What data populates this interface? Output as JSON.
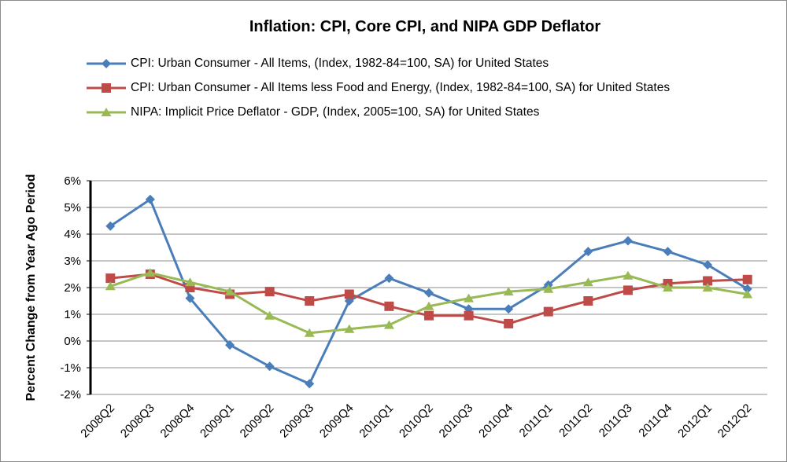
{
  "chart_data": {
    "type": "line",
    "title": "Inflation: CPI, Core CPI, and NIPA GDP Deflator",
    "y_label": "Percent Change from Year Ago Period",
    "categories": [
      "2008Q2",
      "2008Q3",
      "2008Q4",
      "2009Q1",
      "2009Q2",
      "2009Q3",
      "2009Q4",
      "2010Q1",
      "2010Q2",
      "2010Q3",
      "2010Q4",
      "2011Q1",
      "2011Q2",
      "2011Q3",
      "2011Q4",
      "2012Q1",
      "2012Q2"
    ],
    "series": [
      {
        "name": "CPI: Urban Consumer - All Items, (Index, 1982-84=100, SA) for United States",
        "color": "#4a7ebb",
        "marker": "diamond",
        "values": [
          4.3,
          5.3,
          1.6,
          -0.15,
          -0.95,
          -1.6,
          1.5,
          2.35,
          1.8,
          1.2,
          1.2,
          2.1,
          3.35,
          3.75,
          3.35,
          2.85,
          1.95
        ]
      },
      {
        "name": "CPI: Urban Consumer - All Items less Food and Energy, (Index, 1982-84=100, SA) for United States",
        "color": "#be4b48",
        "marker": "square",
        "values": [
          2.35,
          2.5,
          2.0,
          1.75,
          1.85,
          1.5,
          1.75,
          1.3,
          0.95,
          0.95,
          0.65,
          1.1,
          1.5,
          1.9,
          2.15,
          2.25,
          2.3
        ]
      },
      {
        "name": "NIPA: Implicit Price Deflator - GDP, (Index, 2005=100, SA) for United States",
        "color": "#98b954",
        "marker": "triangle",
        "values": [
          2.05,
          2.55,
          2.2,
          1.85,
          0.95,
          0.3,
          0.45,
          0.6,
          1.3,
          1.6,
          1.85,
          1.95,
          2.2,
          2.45,
          2.0,
          2.0,
          1.75
        ]
      }
    ],
    "ylim": [
      -2,
      6
    ],
    "yticks": [
      {
        "value": -2,
        "label": "-2%"
      },
      {
        "value": -1,
        "label": "-1%"
      },
      {
        "value": 0,
        "label": "0%"
      },
      {
        "value": 1,
        "label": "1%"
      },
      {
        "value": 2,
        "label": "2%"
      },
      {
        "value": 3,
        "label": "3%"
      },
      {
        "value": 4,
        "label": "4%"
      },
      {
        "value": 5,
        "label": "5%"
      },
      {
        "value": 6,
        "label": "6%"
      }
    ],
    "grid": true
  }
}
